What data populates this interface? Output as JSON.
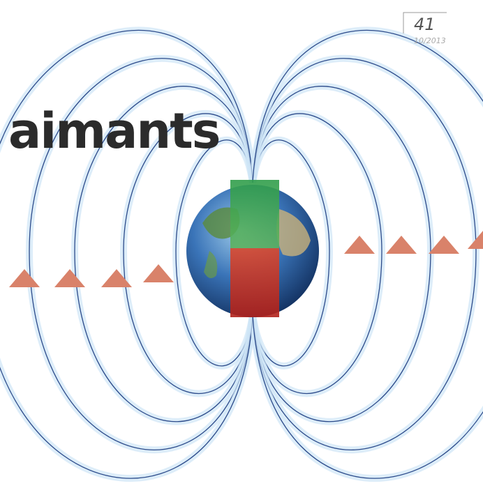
{
  "title": "aimants",
  "page_number": "41",
  "date": "10/2013"
}
